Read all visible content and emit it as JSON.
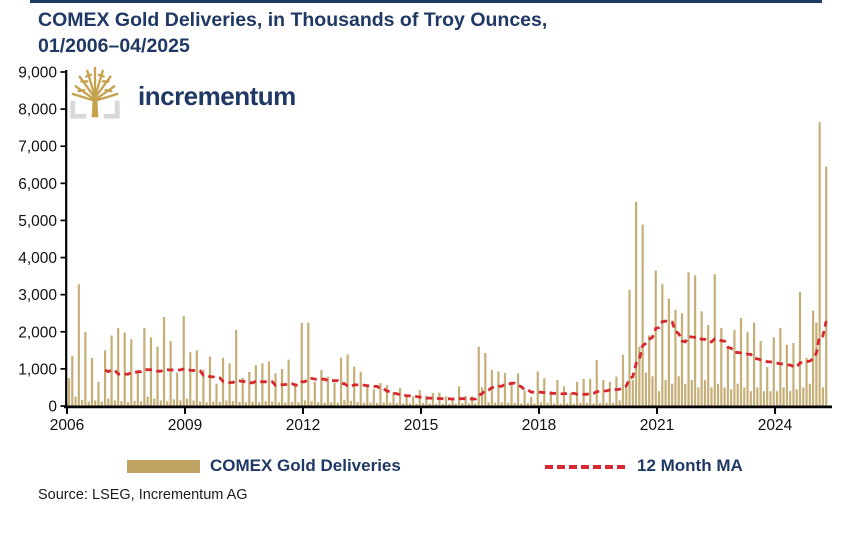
{
  "header": {
    "title_line1": "COMEX Gold Deliveries, in Thousands of Troy Ounces,",
    "title_line2": "01/2006–04/2025",
    "logo_text": "incrementum"
  },
  "footer": {
    "source": "Source: LSEG, Incrementum AG"
  },
  "chart_data": {
    "type": "bar",
    "title": "COMEX Gold Deliveries, in Thousands of Troy Ounces, 01/2006–04/2025",
    "unit": "Thousands of Troy Ounces",
    "x_start": "2006-01",
    "x_end": "2025-04",
    "ylim": [
      0,
      9000
    ],
    "y_tick_labels": [
      "0",
      "1,000",
      "2,000",
      "3,000",
      "4,000",
      "5,000",
      "6,000",
      "7,000",
      "8,000",
      "9,000"
    ],
    "x_tick_labels": [
      "2006",
      "2009",
      "2012",
      "2015",
      "2018",
      "2021",
      "2024"
    ],
    "grid": false,
    "legend_position": "bottom",
    "colors": {
      "bar": "#C6AF77",
      "bar_legend": "#C0A262",
      "ma": "#D7282F",
      "axis": "#000000",
      "title": "#1F3864"
    },
    "series": [
      {
        "name": "COMEX Gold Deliveries",
        "type": "bar",
        "monthly_values": [
          750,
          1350,
          250,
          3280,
          160,
          2000,
          120,
          1300,
          150,
          650,
          120,
          1500,
          200,
          1900,
          150,
          2100,
          130,
          1980,
          110,
          1800,
          140,
          950,
          130,
          2100,
          250,
          1850,
          200,
          1600,
          150,
          2400,
          130,
          1750,
          180,
          900,
          150,
          2420,
          200,
          1450,
          150,
          1500,
          120,
          980,
          100,
          1330,
          120,
          600,
          110,
          1300,
          150,
          1150,
          130,
          2050,
          110,
          760,
          100,
          920,
          120,
          1100,
          100,
          1150,
          130,
          1200,
          120,
          880,
          100,
          1000,
          90,
          1250,
          110,
          620,
          100,
          2240,
          150,
          2250,
          130,
          650,
          100,
          970,
          90,
          790,
          100,
          620,
          90,
          1300,
          160,
          1390,
          140,
          1060,
          110,
          920,
          90,
          560,
          90,
          450,
          80,
          620,
          100,
          560,
          90,
          380,
          80,
          480,
          70,
          290,
          70,
          260,
          60,
          430,
          80,
          280,
          70,
          350,
          60,
          360,
          60,
          260,
          60,
          190,
          60,
          530,
          80,
          270,
          70,
          260,
          70,
          1600,
          500,
          1430,
          100,
          970,
          90,
          930,
          100,
          890,
          90,
          600,
          80,
          880,
          70,
          420,
          80,
          250,
          70,
          930,
          100,
          750,
          80,
          400,
          70,
          700,
          60,
          530,
          70,
          350,
          60,
          650,
          90,
          730,
          80,
          730,
          70,
          1240,
          80,
          700,
          90,
          650,
          80,
          790,
          150,
          1380,
          500,
          3130,
          700,
          5500,
          1600,
          4890,
          900,
          1900,
          800,
          3650,
          400,
          3280,
          700,
          2900,
          600,
          2590,
          800,
          2500,
          600,
          3600,
          700,
          3520,
          500,
          2550,
          700,
          2180,
          500,
          3550,
          600,
          2100,
          500,
          1550,
          450,
          2050,
          600,
          2370,
          500,
          2000,
          400,
          2250,
          500,
          1750,
          400,
          1050,
          400,
          1850,
          400,
          2100,
          500,
          1650,
          400,
          1700,
          450,
          3080,
          500,
          1300,
          600,
          2570,
          2250,
          7650,
          500,
          6450
        ]
      },
      {
        "name": "12 Month MA",
        "type": "line",
        "derived": "trailing 12-month moving average of COMEX Gold Deliveries monthly_values",
        "window": 12
      }
    ]
  }
}
